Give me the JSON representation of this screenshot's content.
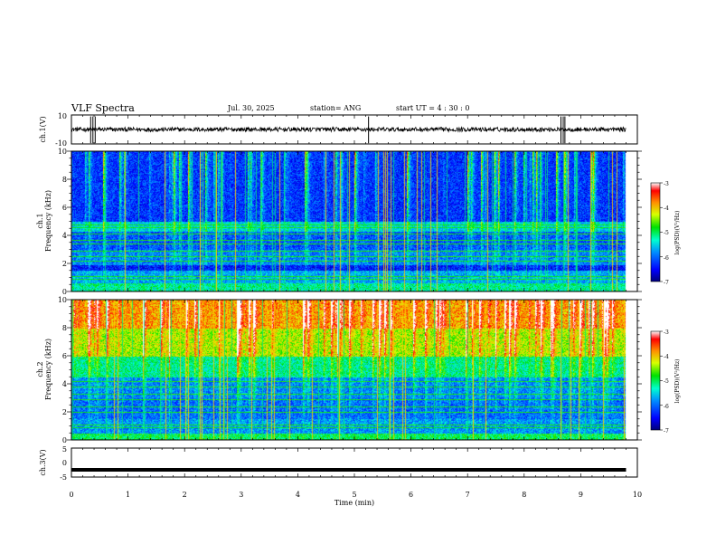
{
  "header": {
    "title": "VLF Spectra",
    "date": "Jul. 30, 2025",
    "station": "station= ANG",
    "start": "start  UT =   4 : 30 : 0"
  },
  "chart_data": [
    {
      "type": "line",
      "name": "ch1-waveform",
      "ylabel": "ch.1(V)",
      "ylim": [
        -10,
        10
      ],
      "ytick_labels": [
        "10",
        "-10"
      ],
      "xlim": [
        0,
        10
      ],
      "baseline": 0,
      "noise_amplitude": 3,
      "spikes_min": [
        0.34,
        0.38,
        0.42,
        5.25,
        8.65,
        8.69,
        8.72
      ]
    },
    {
      "type": "heatmap",
      "name": "ch1-spectrogram",
      "ylabel_line1": "ch.1",
      "ylabel_line2": "Frequency (kHz)",
      "ylim": [
        0,
        10
      ],
      "ytick_labels": [
        "0",
        "2",
        "4",
        "6",
        "8",
        "10"
      ],
      "xlim": [
        0,
        10
      ],
      "data_end_min": 9.8,
      "colorbar": {
        "label": "log(PSD)(V²/Hz)",
        "ticks": [
          "-3",
          "-4",
          "-5",
          "-6",
          "-7"
        ],
        "range": [
          -7,
          -3
        ]
      },
      "bands": [
        {
          "f0": 0.0,
          "f1": 0.6,
          "level": 0.45
        },
        {
          "f0": 0.6,
          "f1": 1.5,
          "level": 0.32
        },
        {
          "f0": 1.5,
          "f1": 1.9,
          "level": 0.15
        },
        {
          "f0": 1.9,
          "f1": 3.0,
          "level": 0.28
        },
        {
          "f0": 3.0,
          "f1": 4.3,
          "level": 0.22
        },
        {
          "f0": 4.3,
          "f1": 5.0,
          "level": 0.38
        },
        {
          "f0": 5.0,
          "f1": 10.0,
          "level": 0.18
        }
      ],
      "tonal_lines_khz": [
        0.9,
        1.1,
        2.2,
        2.5,
        2.9,
        3.4,
        3.7,
        4.1,
        4.6,
        4.8
      ],
      "burst_height_khz": [
        8.5,
        10
      ]
    },
    {
      "type": "heatmap",
      "name": "ch2-spectrogram",
      "ylabel_line1": "ch.2",
      "ylabel_line2": "Frequency (kHz)",
      "ylim": [
        0,
        10
      ],
      "ytick_labels": [
        "0",
        "2",
        "4",
        "6",
        "8",
        "10"
      ],
      "xlim": [
        0,
        10
      ],
      "data_end_min": 9.8,
      "colorbar": {
        "label": "log(PSD)(V²/Hz)",
        "ticks": [
          "-3",
          "-4",
          "-5",
          "-6",
          "-7"
        ],
        "range": [
          -7,
          -3
        ]
      },
      "bands": [
        {
          "f0": 0.0,
          "f1": 0.5,
          "level": 0.5
        },
        {
          "f0": 0.5,
          "f1": 1.5,
          "level": 0.3
        },
        {
          "f0": 1.5,
          "f1": 3.0,
          "level": 0.25
        },
        {
          "f0": 3.0,
          "f1": 4.5,
          "level": 0.28
        },
        {
          "f0": 4.5,
          "f1": 6.0,
          "level": 0.45
        },
        {
          "f0": 6.0,
          "f1": 8.0,
          "level": 0.65
        },
        {
          "f0": 8.0,
          "f1": 10.0,
          "level": 0.78
        }
      ],
      "tonal_lines_khz": [
        0.9,
        1.1,
        2.0,
        2.4,
        2.9,
        3.3,
        3.8,
        4.2
      ],
      "burst_height_khz": [
        6,
        10
      ]
    },
    {
      "type": "line",
      "name": "ch3-waveform",
      "ylabel": "ch.3(V)",
      "ylim": [
        -5,
        5
      ],
      "ytick_labels": [
        "5",
        "0",
        "-5"
      ],
      "xlim": [
        0,
        10
      ],
      "baseline": -2.5
    }
  ],
  "xaxis": {
    "label": "Time (min)",
    "ticks": [
      "0",
      "1",
      "2",
      "3",
      "4",
      "5",
      "6",
      "7",
      "8",
      "9",
      "10"
    ]
  }
}
